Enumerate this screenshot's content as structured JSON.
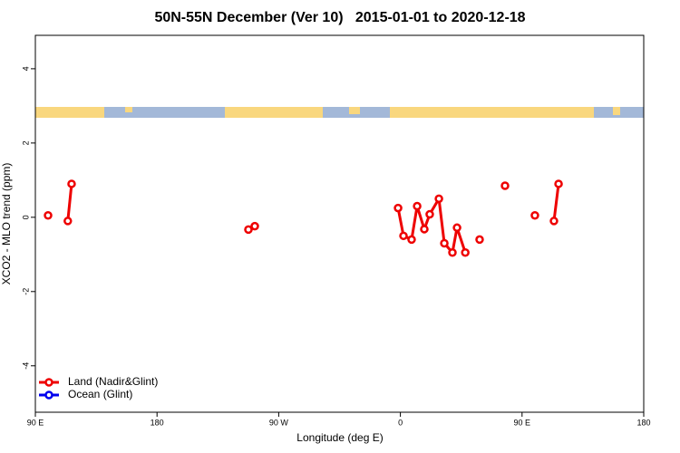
{
  "chart_data": {
    "type": "line",
    "title": "50N-55N December (Ver 10)   2015-01-01 to 2020-12-18",
    "x_label": "Longitude (deg E)",
    "y_label": "XCO2 - MLO trend (ppm)",
    "xlim": [
      90,
      540
    ],
    "xticks": [
      {
        "value": 90,
        "label": "90 E"
      },
      {
        "value": 180,
        "label": "180"
      },
      {
        "value": 270,
        "label": "90 W"
      },
      {
        "value": 360,
        "label": "0"
      },
      {
        "value": 450,
        "label": "90 E"
      },
      {
        "value": 540,
        "label": "180"
      }
    ],
    "ylim": [
      -5.25,
      4.9
    ],
    "yticks": [
      -4,
      -2,
      0,
      2,
      4
    ],
    "legend": "bottom-left",
    "series": [
      {
        "name": "Land (Nadir&Glint)",
        "color": "#ee0000",
        "x": [
          99.4,
          null,
          114,
          116.8,
          null,
          247.6,
          252.3,
          null,
          358.3,
          362.3,
          368.3,
          372.4,
          377.7,
          381.7,
          388.5,
          392.5,
          398.5,
          401.9,
          408,
          null,
          418.6,
          null,
          437.4,
          null,
          459.5,
          null,
          473.6,
          477
        ],
        "values": [
          0.05,
          null,
          -0.1,
          0.9,
          null,
          -0.33,
          -0.24,
          null,
          0.25,
          -0.5,
          -0.6,
          0.3,
          -0.32,
          0.08,
          0.5,
          -0.7,
          -0.95,
          -0.28,
          -0.95,
          null,
          -0.6,
          null,
          0.85,
          null,
          0.05,
          null,
          -0.1,
          0.9
        ]
      },
      {
        "name": "Ocean (Glint)",
        "color": "#0000ee",
        "x": [],
        "values": []
      }
    ]
  }
}
